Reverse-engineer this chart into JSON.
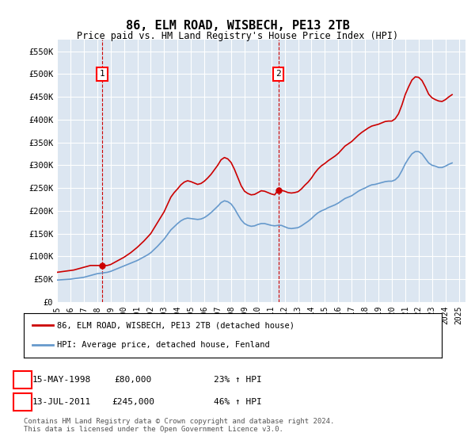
{
  "title": "86, ELM ROAD, WISBECH, PE13 2TB",
  "subtitle": "Price paid vs. HM Land Registry's House Price Index (HPI)",
  "xlabel": "",
  "ylabel": "",
  "ylim": [
    0,
    575000
  ],
  "xlim": [
    1995.0,
    2025.5
  ],
  "yticks": [
    0,
    50000,
    100000,
    150000,
    200000,
    250000,
    300000,
    350000,
    400000,
    450000,
    500000,
    550000
  ],
  "ytick_labels": [
    "£0",
    "£50K",
    "£100K",
    "£150K",
    "£200K",
    "£250K",
    "£300K",
    "£350K",
    "£400K",
    "£450K",
    "£500K",
    "£550K"
  ],
  "xtick_years": [
    1995,
    1996,
    1997,
    1998,
    1999,
    2000,
    2001,
    2002,
    2003,
    2004,
    2005,
    2006,
    2007,
    2008,
    2009,
    2010,
    2011,
    2012,
    2013,
    2014,
    2015,
    2016,
    2017,
    2018,
    2019,
    2020,
    2021,
    2022,
    2023,
    2024,
    2025
  ],
  "background_color": "#dce6f1",
  "plot_bg_color": "#dce6f1",
  "grid_color": "#ffffff",
  "red_line_color": "#cc0000",
  "blue_line_color": "#6699cc",
  "sale1_x": 1998.37,
  "sale1_y": 80000,
  "sale1_label": "1",
  "sale1_date": "15-MAY-1998",
  "sale1_price": "£80,000",
  "sale1_hpi": "23% ↑ HPI",
  "sale2_x": 2011.53,
  "sale2_y": 245000,
  "sale2_label": "2",
  "sale2_date": "13-JUL-2011",
  "sale2_price": "£245,000",
  "sale2_hpi": "46% ↑ HPI",
  "legend_line1": "86, ELM ROAD, WISBECH, PE13 2TB (detached house)",
  "legend_line2": "HPI: Average price, detached house, Fenland",
  "footer": "Contains HM Land Registry data © Crown copyright and database right 2024.\nThis data is licensed under the Open Government Licence v3.0.",
  "hpi_data_x": [
    1995.0,
    1995.25,
    1995.5,
    1995.75,
    1996.0,
    1996.25,
    1996.5,
    1996.75,
    1997.0,
    1997.25,
    1997.5,
    1997.75,
    1998.0,
    1998.25,
    1998.5,
    1998.75,
    1999.0,
    1999.25,
    1999.5,
    1999.75,
    2000.0,
    2000.25,
    2000.5,
    2000.75,
    2001.0,
    2001.25,
    2001.5,
    2001.75,
    2002.0,
    2002.25,
    2002.5,
    2002.75,
    2003.0,
    2003.25,
    2003.5,
    2003.75,
    2004.0,
    2004.25,
    2004.5,
    2004.75,
    2005.0,
    2005.25,
    2005.5,
    2005.75,
    2006.0,
    2006.25,
    2006.5,
    2006.75,
    2007.0,
    2007.25,
    2007.5,
    2007.75,
    2008.0,
    2008.25,
    2008.5,
    2008.75,
    2009.0,
    2009.25,
    2009.5,
    2009.75,
    2010.0,
    2010.25,
    2010.5,
    2010.75,
    2011.0,
    2011.25,
    2011.5,
    2011.75,
    2012.0,
    2012.25,
    2012.5,
    2012.75,
    2013.0,
    2013.25,
    2013.5,
    2013.75,
    2014.0,
    2014.25,
    2014.5,
    2014.75,
    2015.0,
    2015.25,
    2015.5,
    2015.75,
    2016.0,
    2016.25,
    2016.5,
    2016.75,
    2017.0,
    2017.25,
    2017.5,
    2017.75,
    2018.0,
    2018.25,
    2018.5,
    2018.75,
    2019.0,
    2019.25,
    2019.5,
    2019.75,
    2020.0,
    2020.25,
    2020.5,
    2020.75,
    2021.0,
    2021.25,
    2021.5,
    2021.75,
    2022.0,
    2022.25,
    2022.5,
    2022.75,
    2023.0,
    2023.25,
    2023.5,
    2023.75,
    2024.0,
    2024.25,
    2024.5
  ],
  "hpi_data_y": [
    48000,
    48500,
    49000,
    49500,
    50000,
    51000,
    52000,
    53000,
    54000,
    56000,
    58000,
    60000,
    62000,
    63000,
    64000,
    65000,
    67000,
    70000,
    73000,
    76000,
    79000,
    82000,
    85000,
    88000,
    91000,
    95000,
    99000,
    103000,
    108000,
    115000,
    122000,
    130000,
    138000,
    148000,
    158000,
    165000,
    172000,
    178000,
    182000,
    184000,
    183000,
    182000,
    181000,
    182000,
    185000,
    190000,
    196000,
    203000,
    210000,
    218000,
    222000,
    220000,
    215000,
    205000,
    192000,
    180000,
    172000,
    168000,
    166000,
    167000,
    170000,
    172000,
    172000,
    170000,
    168000,
    167000,
    168000,
    168000,
    165000,
    162000,
    161000,
    162000,
    163000,
    167000,
    172000,
    177000,
    183000,
    190000,
    196000,
    200000,
    203000,
    207000,
    210000,
    213000,
    217000,
    222000,
    227000,
    230000,
    233000,
    238000,
    243000,
    247000,
    250000,
    254000,
    257000,
    258000,
    260000,
    262000,
    264000,
    265000,
    265000,
    268000,
    275000,
    288000,
    303000,
    315000,
    325000,
    330000,
    330000,
    325000,
    315000,
    305000,
    300000,
    298000,
    295000,
    295000,
    298000,
    302000,
    305000
  ],
  "red_data_x": [
    1995.0,
    1995.25,
    1995.5,
    1995.75,
    1996.0,
    1996.25,
    1996.5,
    1996.75,
    1997.0,
    1997.25,
    1997.5,
    1997.75,
    1998.0,
    1998.25,
    1998.5,
    1998.75,
    1999.0,
    1999.25,
    1999.5,
    1999.75,
    2000.0,
    2000.25,
    2000.5,
    2000.75,
    2001.0,
    2001.25,
    2001.5,
    2001.75,
    2002.0,
    2002.25,
    2002.5,
    2002.75,
    2003.0,
    2003.25,
    2003.5,
    2003.75,
    2004.0,
    2004.25,
    2004.5,
    2004.75,
    2005.0,
    2005.25,
    2005.5,
    2005.75,
    2006.0,
    2006.25,
    2006.5,
    2006.75,
    2007.0,
    2007.25,
    2007.5,
    2007.75,
    2008.0,
    2008.25,
    2008.5,
    2008.75,
    2009.0,
    2009.25,
    2009.5,
    2009.75,
    2010.0,
    2010.25,
    2010.5,
    2010.75,
    2011.0,
    2011.25,
    2011.5,
    2011.75,
    2012.0,
    2012.25,
    2012.5,
    2012.75,
    2013.0,
    2013.25,
    2013.5,
    2013.75,
    2014.0,
    2014.25,
    2014.5,
    2014.75,
    2015.0,
    2015.25,
    2015.5,
    2015.75,
    2016.0,
    2016.25,
    2016.5,
    2016.75,
    2017.0,
    2017.25,
    2017.5,
    2017.75,
    2018.0,
    2018.25,
    2018.5,
    2018.75,
    2019.0,
    2019.25,
    2019.5,
    2019.75,
    2020.0,
    2020.25,
    2020.5,
    2020.75,
    2021.0,
    2021.25,
    2021.5,
    2021.75,
    2022.0,
    2022.25,
    2022.5,
    2022.75,
    2023.0,
    2023.25,
    2023.5,
    2023.75,
    2024.0,
    2024.25,
    2024.5
  ],
  "red_data_y": [
    65000,
    66000,
    67000,
    68000,
    69000,
    70000,
    72000,
    74000,
    76000,
    78000,
    80000,
    80000,
    80000,
    80000,
    80000,
    80000,
    82000,
    86000,
    90000,
    94000,
    98000,
    103000,
    108000,
    114000,
    120000,
    127000,
    134000,
    142000,
    150000,
    162000,
    174000,
    186000,
    198000,
    214000,
    230000,
    240000,
    248000,
    257000,
    263000,
    266000,
    264000,
    261000,
    258000,
    260000,
    265000,
    272000,
    280000,
    290000,
    300000,
    312000,
    317000,
    314000,
    306000,
    291000,
    273000,
    255000,
    243000,
    238000,
    235000,
    236000,
    240000,
    244000,
    243000,
    240000,
    237000,
    235000,
    245000,
    245000,
    243000,
    240000,
    239000,
    240000,
    242000,
    248000,
    256000,
    263000,
    272000,
    283000,
    292000,
    299000,
    304000,
    310000,
    315000,
    320000,
    326000,
    334000,
    342000,
    347000,
    352000,
    359000,
    366000,
    372000,
    377000,
    382000,
    386000,
    388000,
    390000,
    393000,
    396000,
    397000,
    397000,
    402000,
    413000,
    432000,
    455000,
    472000,
    487000,
    494000,
    493000,
    486000,
    472000,
    456000,
    448000,
    444000,
    441000,
    440000,
    444000,
    450000,
    455000
  ]
}
